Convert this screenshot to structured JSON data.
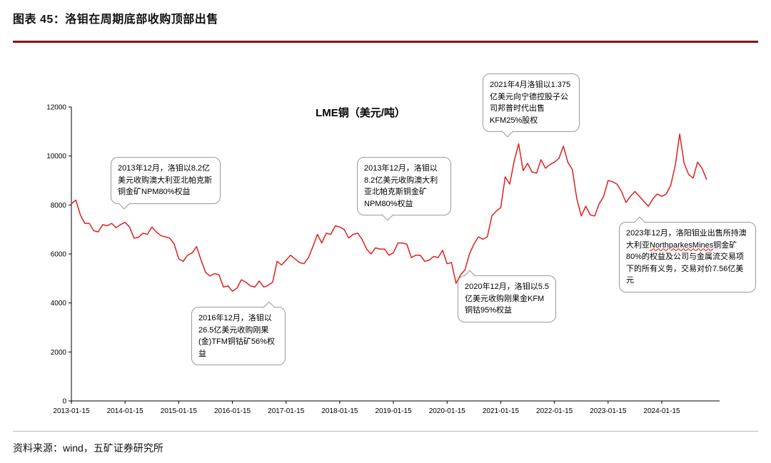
{
  "header": {
    "title": "图表 45：洛钼在周期底部收购顶部出售"
  },
  "footer": {
    "source": "资料来源：wind，五矿证券研究所"
  },
  "chart_data": {
    "type": "line",
    "title": "LME铜（美元/吨）",
    "x_start": "2013-01",
    "x_interval": "monthly",
    "x_ticks": [
      "2013-01-15",
      "2014-01-15",
      "2015-01-15",
      "2016-01-15",
      "2017-01-15",
      "2018-01-15",
      "2019-01-15",
      "2020-01-15",
      "2021-01-15",
      "2022-01-15",
      "2023-01-15",
      "2024-01-15"
    ],
    "y_ticks": [
      0,
      2000,
      4000,
      6000,
      8000,
      10000,
      12000
    ],
    "ylim": [
      0,
      12000
    ],
    "grid": false,
    "line_color": "#e01f1f",
    "series": [
      {
        "name": "LME铜（美元/吨）",
        "color": "#e01f1f",
        "values": [
          8050,
          8200,
          7600,
          7250,
          7250,
          6950,
          6900,
          7200,
          7150,
          7250,
          7070,
          7200,
          7290,
          7100,
          6650,
          6680,
          6850,
          6800,
          7100,
          6900,
          6750,
          6700,
          6650,
          6400,
          5800,
          5700,
          5950,
          6050,
          6300,
          5750,
          5250,
          5100,
          5200,
          5150,
          4650,
          4700,
          4480,
          4600,
          4950,
          4850,
          4700,
          4650,
          4900,
          4650,
          4720,
          4850,
          5700,
          5550,
          5750,
          5950,
          5800,
          5650,
          5600,
          5850,
          6300,
          6800,
          6450,
          6850,
          6800,
          7150,
          7100,
          7000,
          6650,
          6800,
          6850,
          6600,
          6200,
          6000,
          6250,
          6200,
          6200,
          5950,
          6050,
          6450,
          6450,
          6400,
          5850,
          5950,
          5950,
          5700,
          5750,
          5900,
          5850,
          6150,
          5600,
          5650,
          4800,
          5150,
          5350,
          6000,
          6400,
          6700,
          6600,
          6700,
          7550,
          7750,
          7900,
          9150,
          8850,
          9800,
          10500,
          9400,
          9700,
          9350,
          9300,
          9850,
          9500,
          9650,
          9750,
          9900,
          10400,
          9750,
          9450,
          8250,
          7550,
          7950,
          7600,
          7550,
          8050,
          8350,
          9000,
          8950,
          8850,
          8550,
          8100,
          8350,
          8550,
          8350,
          8150,
          7950,
          8250,
          8450,
          8350,
          8450,
          8800,
          9600,
          10900,
          9700,
          9250,
          9100,
          9750,
          9500,
          9050
        ]
      }
    ],
    "annotations": [
      {
        "text": "2013年12月，洛钼以8.2亿美元收购澳大利亚北帕克斯铜金矿NPM80%权益"
      },
      {
        "text": "2016年12月，洛钼以26.5亿美元收购刚果(金)TFM铜钴矿56%权益"
      },
      {
        "text": "2013年12月，洛钼以8.2亿美元收购澳大利亚北帕克斯铜金矿NPM80%权益"
      },
      {
        "text": "2021年4月洛钼以1.375亿美元向宁德控股子公司邦普时代出售KFM25%股权"
      },
      {
        "text": "2020年12月，洛钼以5.5亿美元收购刚果金KFM铜钴95%权益"
      },
      {
        "before": "2023年12月，洛阳钼业出售所持澳大利亚",
        "highlight": "NorthparkesMines",
        "after": "铜金矿80%的权益及公司与金属流交易项下的所有义务，交易对价7.56亿美元"
      }
    ]
  }
}
